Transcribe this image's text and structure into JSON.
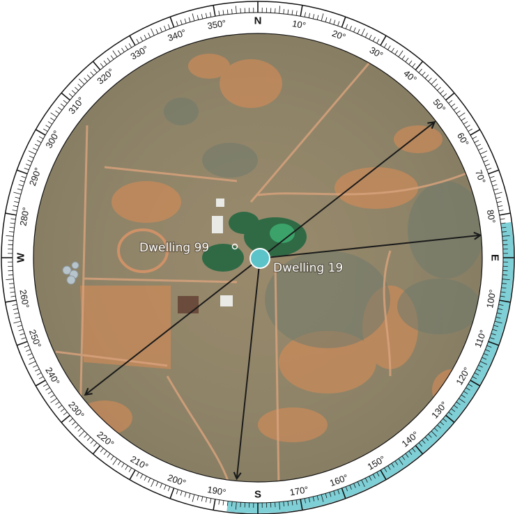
{
  "compass": {
    "cardinals": [
      {
        "letter": "N",
        "bearing": 0
      },
      {
        "letter": "E",
        "bearing": 90
      },
      {
        "letter": "S",
        "bearing": 180
      },
      {
        "letter": "W",
        "bearing": 270
      }
    ],
    "degree_labels": [
      "10°",
      "20°",
      "30°",
      "40°",
      "50°",
      "60°",
      "70°",
      "80°",
      "100°",
      "110°",
      "120°",
      "130°",
      "140°",
      "150°",
      "160°",
      "170°",
      "190°",
      "200°",
      "210°",
      "220°",
      "230°",
      "240°",
      "250°",
      "260°",
      "280°",
      "290°",
      "300°",
      "310°",
      "320°",
      "330°",
      "340°",
      "350°"
    ],
    "degree_values": [
      10,
      20,
      30,
      40,
      50,
      60,
      70,
      80,
      100,
      110,
      120,
      130,
      140,
      150,
      160,
      170,
      190,
      200,
      210,
      220,
      230,
      240,
      250,
      260,
      280,
      290,
      300,
      310,
      320,
      330,
      340,
      350
    ],
    "highlight_range_deg": [
      82,
      187
    ],
    "colors": {
      "ring_bg": "#ffffff",
      "tick": "#111111",
      "highlight": "#7fcfd6",
      "arrow": "#1a1a1a",
      "center_dot": "#5cc3c9"
    }
  },
  "dwellings": {
    "primary": {
      "label": "Dwelling 19"
    },
    "secondary": {
      "label": "Dwelling 99"
    }
  },
  "bearing_lines": [
    {
      "bearing": 52,
      "two_way": true
    },
    {
      "bearing": 84,
      "two_way": false
    },
    {
      "bearing": 186,
      "two_way": false
    }
  ]
}
